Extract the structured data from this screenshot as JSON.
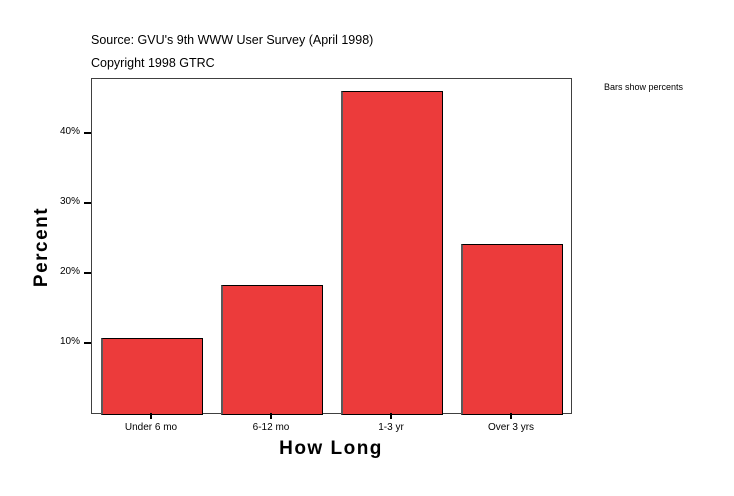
{
  "header": {
    "source": "Source: GVU's 9th WWW User Survey (April 1998)",
    "copyright": "Copyright 1998 GTRC"
  },
  "legend_note": "Bars show percents",
  "axes": {
    "x_title": "How Long",
    "y_title": "Percent",
    "y_ticks": [
      "10%",
      "20%",
      "30%",
      "40%"
    ],
    "x_ticks": [
      "Under 6 mo",
      "6-12 mo",
      "1-3 yr",
      "Over 3 yrs"
    ]
  },
  "colors": {
    "bar_fill": "#ec3b3b",
    "bar_border": "#000000",
    "frame": "#404040"
  },
  "chart_data": {
    "type": "bar",
    "title": "Source: GVU's 9th WWW User Survey (April 1998)",
    "subtitle": "Copyright 1998 GTRC",
    "annotation": "Bars show percents",
    "categories": [
      "Under 6 mo",
      "6-12 mo",
      "1-3 yr",
      "Over 3 yrs"
    ],
    "values": [
      10.9,
      18.4,
      46.1,
      24.3
    ],
    "xlabel": "How Long",
    "ylabel": "Percent",
    "ylim": [
      0,
      47.8
    ],
    "yticks": [
      10,
      20,
      30,
      40
    ],
    "ytick_format": "percent",
    "grid": false,
    "legend": "none"
  }
}
